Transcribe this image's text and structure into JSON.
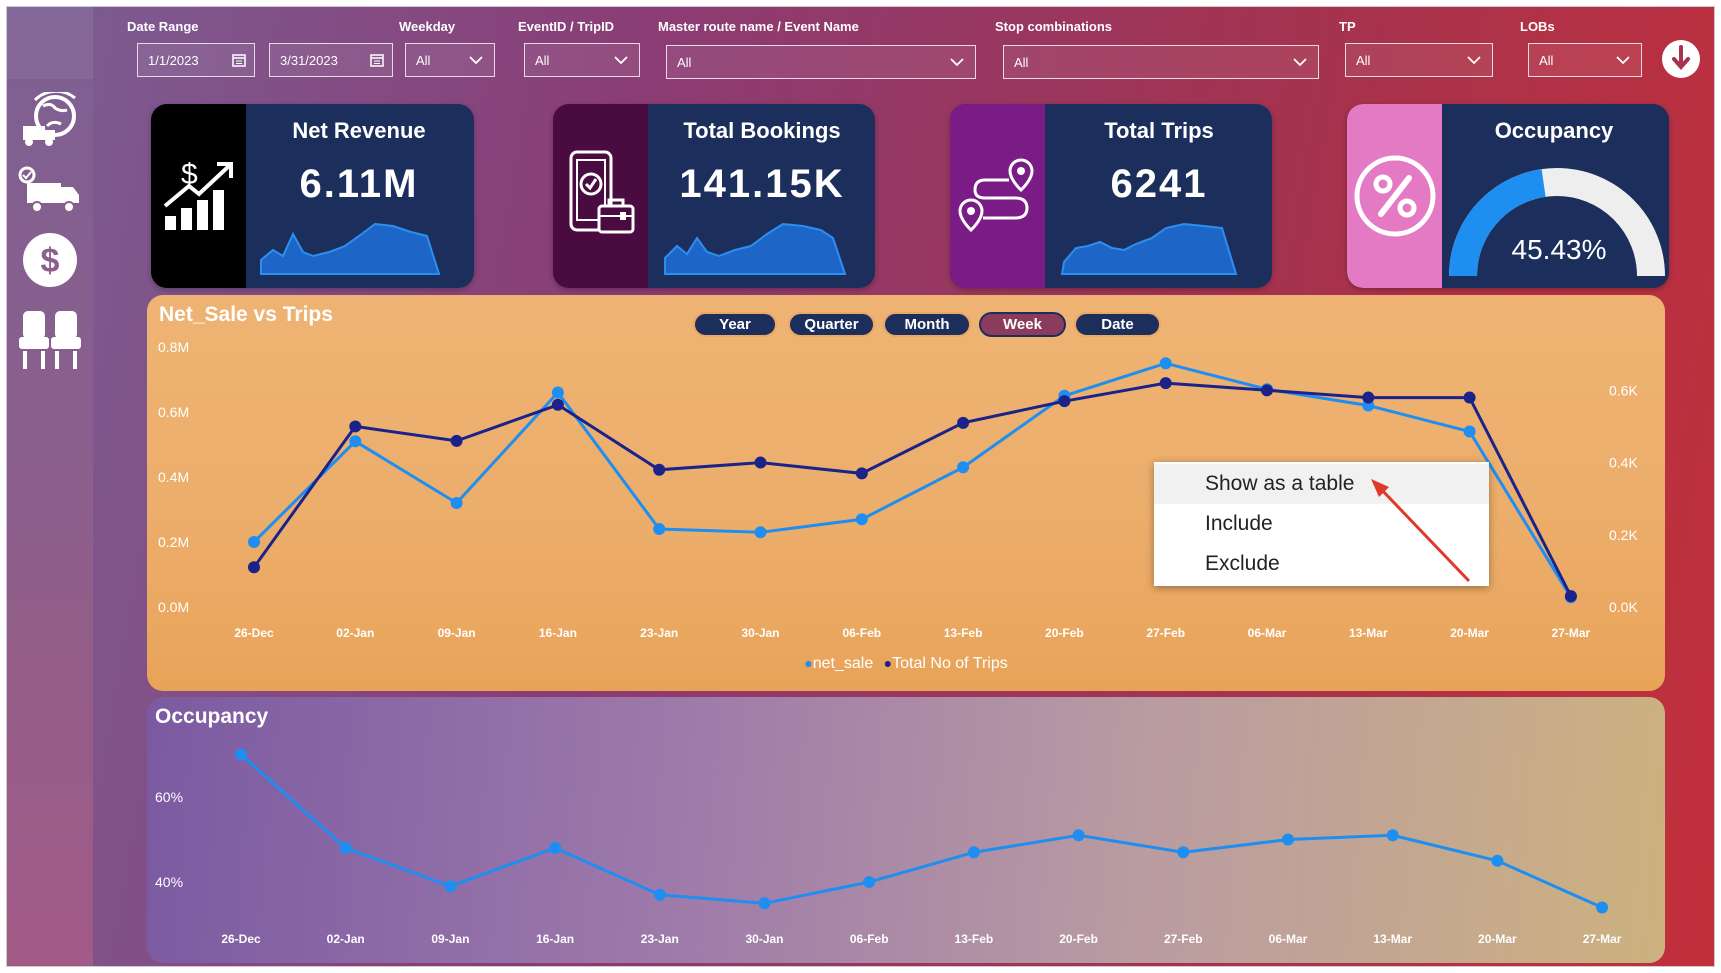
{
  "filters": {
    "date_range_label": "Date Range",
    "date_start": "1/1/2023",
    "date_end": "3/31/2023",
    "weekday_label": "Weekday",
    "weekday_value": "All",
    "eventid_label": "EventID / TripID",
    "eventid_value": "All",
    "route_label": "Master route name / Event Name",
    "route_value": "All",
    "stop_label": "Stop combinations",
    "stop_value": "All",
    "tp_label": "TP",
    "tp_value": "All",
    "lobs_label": "LOBs",
    "lobs_value": "All"
  },
  "nav": {
    "items": [
      "global-logistics-icon",
      "delivery-truck-icon",
      "dollar-icon",
      "seats-icon"
    ]
  },
  "kpis": [
    {
      "title": "Net Revenue",
      "value": "6.11M",
      "icon": "revenue-growth-icon",
      "color": "#000000"
    },
    {
      "title": "Total Bookings",
      "value": "141.15K",
      "icon": "mobile-booking-icon",
      "color": "#4a0b40"
    },
    {
      "title": "Total Trips",
      "value": "6241",
      "icon": "route-pins-icon",
      "color": "#7b1c86"
    },
    {
      "title": "Occupancy",
      "value": "45.43%",
      "icon": "percent-icon",
      "color": "#e47ac4",
      "gauge": 45.43
    }
  ],
  "chart1": {
    "title": "Net_Sale vs Trips",
    "drill": [
      "Year",
      "Quarter",
      "Month",
      "Week",
      "Date"
    ],
    "active_drill": "Week",
    "legend": [
      "net_sale",
      "Total No of Trips"
    ]
  },
  "chart2": {
    "title": "Occupancy"
  },
  "context_menu": {
    "items": [
      "Show as a table",
      "Include",
      "Exclude"
    ]
  },
  "colors": {
    "net_sale": "#1f8ef1",
    "trips": "#1b2289",
    "occupancy": "#1f8ef1"
  },
  "chart_data": [
    {
      "type": "line",
      "title": "Net_Sale vs Trips",
      "categories": [
        "26-Dec",
        "02-Jan",
        "09-Jan",
        "16-Jan",
        "23-Jan",
        "30-Jan",
        "06-Feb",
        "13-Feb",
        "20-Feb",
        "27-Feb",
        "06-Mar",
        "13-Mar",
        "20-Mar",
        "27-Mar"
      ],
      "y_ticks": [
        "0.0M",
        "0.2M",
        "0.4M",
        "0.6M",
        "0.8M"
      ],
      "y2_ticks": [
        "0.0K",
        "0.2K",
        "0.4K",
        "0.6K"
      ],
      "ylim": [
        0,
        0.8
      ],
      "y2lim": [
        0,
        0.72
      ],
      "series": [
        {
          "name": "net_sale",
          "axis": "left",
          "values": [
            0.2,
            0.51,
            0.32,
            0.66,
            0.24,
            0.23,
            0.27,
            0.43,
            0.65,
            0.75,
            0.67,
            0.62,
            0.54,
            0.03
          ]
        },
        {
          "name": "Total No of Trips",
          "axis": "right",
          "values": [
            0.11,
            0.5,
            0.46,
            0.56,
            0.38,
            0.4,
            0.37,
            0.51,
            0.57,
            0.62,
            0.6,
            0.58,
            0.58,
            0.03
          ]
        }
      ]
    },
    {
      "type": "line",
      "title": "Occupancy",
      "categories": [
        "26-Dec",
        "02-Jan",
        "09-Jan",
        "16-Jan",
        "23-Jan",
        "30-Jan",
        "06-Feb",
        "13-Feb",
        "20-Feb",
        "27-Feb",
        "06-Mar",
        "13-Mar",
        "20-Mar",
        "27-Mar"
      ],
      "y_ticks": [
        "40%",
        "60%"
      ],
      "ylim": [
        25,
        75
      ],
      "series": [
        {
          "name": "occupancy",
          "values": [
            70,
            48,
            39,
            48,
            37,
            35,
            40,
            47,
            51,
            47,
            50,
            51,
            45,
            34
          ]
        }
      ]
    }
  ]
}
